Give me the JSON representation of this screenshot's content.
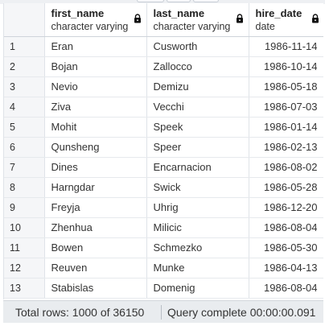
{
  "columns": [
    {
      "name": "first_name",
      "type": "character varying"
    },
    {
      "name": "last_name",
      "type": "character varying"
    },
    {
      "name": "hire_date",
      "type": "date"
    }
  ],
  "rows": [
    {
      "index": "1",
      "first_name": "Eran",
      "last_name": "Cusworth",
      "hire_date": "1986-11-14"
    },
    {
      "index": "2",
      "first_name": "Bojan",
      "last_name": "Zallocco",
      "hire_date": "1986-10-14"
    },
    {
      "index": "3",
      "first_name": "Nevio",
      "last_name": "Demizu",
      "hire_date": "1986-05-18"
    },
    {
      "index": "4",
      "first_name": "Ziva",
      "last_name": "Vecchi",
      "hire_date": "1986-07-03"
    },
    {
      "index": "5",
      "first_name": "Mohit",
      "last_name": "Speek",
      "hire_date": "1986-01-14"
    },
    {
      "index": "6",
      "first_name": "Qunsheng",
      "last_name": "Speer",
      "hire_date": "1986-02-13"
    },
    {
      "index": "7",
      "first_name": "Dines",
      "last_name": "Encarnacion",
      "hire_date": "1986-08-02"
    },
    {
      "index": "8",
      "first_name": "Harngdar",
      "last_name": "Swick",
      "hire_date": "1986-05-28"
    },
    {
      "index": "9",
      "first_name": "Freyja",
      "last_name": "Uhrig",
      "hire_date": "1986-12-20"
    },
    {
      "index": "10",
      "first_name": "Zhenhua",
      "last_name": "Milicic",
      "hire_date": "1986-08-04"
    },
    {
      "index": "11",
      "first_name": "Bowen",
      "last_name": "Schmezko",
      "hire_date": "1986-05-30"
    },
    {
      "index": "12",
      "first_name": "Reuven",
      "last_name": "Munke",
      "hire_date": "1986-04-13"
    },
    {
      "index": "13",
      "first_name": "Stabislas",
      "last_name": "Domenig",
      "hire_date": "1986-08-04"
    }
  ],
  "status": {
    "total_rows": "Total rows: 1000 of 36150",
    "query": "Query complete 00:00:00.091"
  },
  "icons": {
    "column_lock": "lock-icon"
  }
}
